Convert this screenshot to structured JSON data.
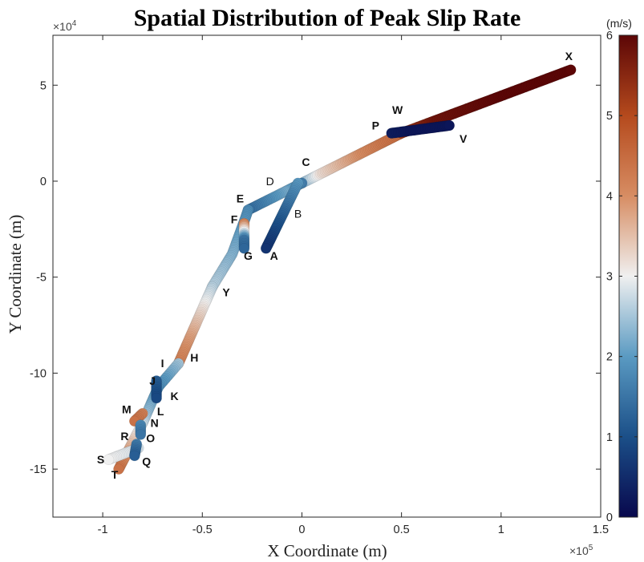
{
  "chart_data": {
    "type": "scatter",
    "title": "Spatial Distribution of Peak Slip Rate",
    "xlabel": "X Coordinate (m)",
    "ylabel": "Y Coordinate (m)",
    "x_exponent_base": "×10",
    "x_exponent_power": "5",
    "y_exponent_base": "×10",
    "y_exponent_power": "4",
    "xlim": [
      -125000,
      150000
    ],
    "ylim": [
      -175000,
      76000
    ],
    "x_ticks": [
      -100000,
      -50000,
      0,
      50000,
      100000,
      150000
    ],
    "x_tick_labels": [
      "-1",
      "-0.5",
      "0",
      "0.5",
      "1",
      "1.5"
    ],
    "y_ticks": [
      -150000,
      -100000,
      -50000,
      0,
      50000
    ],
    "y_tick_labels": [
      "-15",
      "-10",
      "-5",
      "0",
      "5"
    ],
    "grid": false,
    "colorbar": {
      "label": "(m/s)",
      "min": 0,
      "max": 6,
      "ticks": [
        0,
        1,
        2,
        3,
        4,
        5,
        6
      ],
      "tick_labels": [
        "0",
        "1",
        "2",
        "3",
        "4",
        "5",
        "6"
      ],
      "colormap": [
        "#08084d",
        "#1b4f88",
        "#5a9ac2",
        "#f0f0f0",
        "#d78d63",
        "#b54a1d",
        "#5c0606"
      ]
    },
    "segments": [
      {
        "points": [
          [
            0,
            -1000
          ],
          [
            50000,
            25000
          ]
        ],
        "values": [
          2.2,
          3.2,
          3.6,
          4.0,
          4.3,
          4.5
        ]
      },
      {
        "points": [
          [
            50000,
            25000
          ],
          [
            135000,
            58000
          ]
        ],
        "values": [
          5.2,
          5.8,
          5.9,
          6.0,
          6.0,
          6.0
        ]
      },
      {
        "points": [
          [
            45000,
            25000
          ],
          [
            74000,
            29000
          ]
        ],
        "values": [
          0.3,
          0.2,
          0.2,
          0.2
        ]
      },
      {
        "points": [
          [
            0,
            -1000
          ],
          [
            -27000,
            -15000
          ]
        ],
        "values": [
          1.6,
          2.2,
          1.8,
          1.4
        ]
      },
      {
        "points": [
          [
            -2000,
            -1000
          ],
          [
            -18000,
            -35000
          ]
        ],
        "values": [
          2.0,
          1.5,
          1.0,
          0.6
        ]
      },
      {
        "points": [
          [
            -27000,
            -15000
          ],
          [
            -29000,
            -21000
          ],
          [
            -35000,
            -38000
          ],
          [
            -45000,
            -55000
          ]
        ],
        "values": [
          1.8,
          2.0,
          2.2,
          2.4,
          2.6
        ]
      },
      {
        "points": [
          [
            -29000,
            -22000
          ],
          [
            -29000,
            -35000
          ]
        ],
        "values": [
          4.2,
          3.0,
          1.5,
          1.3
        ]
      },
      {
        "points": [
          [
            -45000,
            -55000
          ],
          [
            -62000,
            -95000
          ]
        ],
        "values": [
          2.6,
          3.2,
          3.8,
          4.2
        ]
      },
      {
        "points": [
          [
            -62000,
            -95000
          ],
          [
            -72000,
            -107000
          ],
          [
            -80000,
            -126000
          ],
          [
            -92000,
            -150000
          ]
        ],
        "values": [
          2.5,
          1.8,
          2.4,
          3.4,
          4.4
        ]
      },
      {
        "points": [
          [
            -73000,
            -104000
          ],
          [
            -73000,
            -113000
          ]
        ],
        "values": [
          1.2,
          0.9
        ]
      },
      {
        "points": [
          [
            -80000,
            -121000
          ],
          [
            -84000,
            -125000
          ]
        ],
        "values": [
          4.2,
          4.4
        ]
      },
      {
        "points": [
          [
            -81000,
            -127000
          ],
          [
            -81000,
            -132000
          ]
        ],
        "values": [
          1.8,
          1.5
        ]
      },
      {
        "points": [
          [
            -82000,
            -139000
          ],
          [
            -97000,
            -145000
          ]
        ],
        "values": [
          2.8,
          3.0
        ]
      },
      {
        "points": [
          [
            -83000,
            -137000
          ],
          [
            -84000,
            -143000
          ]
        ],
        "values": [
          1.6,
          1.2
        ]
      }
    ],
    "annotations": [
      {
        "text": "X",
        "x": 134000,
        "y": 63000,
        "bold": true
      },
      {
        "text": "W",
        "x": 48000,
        "y": 35000,
        "bold": true
      },
      {
        "text": "P",
        "x": 37000,
        "y": 27000,
        "bold": true
      },
      {
        "text": "V",
        "x": 81000,
        "y": 20000,
        "bold": true
      },
      {
        "text": "C",
        "x": 2000,
        "y": 8000,
        "bold": true
      },
      {
        "text": "D",
        "x": -16000,
        "y": -2000,
        "bold": false
      },
      {
        "text": "E",
        "x": -31000,
        "y": -11000,
        "bold": true
      },
      {
        "text": "B",
        "x": -2000,
        "y": -19000,
        "bold": false
      },
      {
        "text": "F",
        "x": -34000,
        "y": -22000,
        "bold": true
      },
      {
        "text": "G",
        "x": -27000,
        "y": -41000,
        "bold": true
      },
      {
        "text": "A",
        "x": -14000,
        "y": -41000,
        "bold": true
      },
      {
        "text": "Y",
        "x": -38000,
        "y": -60000,
        "bold": true
      },
      {
        "text": "H",
        "x": -54000,
        "y": -94000,
        "bold": true
      },
      {
        "text": "I",
        "x": -70000,
        "y": -97000,
        "bold": true
      },
      {
        "text": "J",
        "x": -75000,
        "y": -106000,
        "bold": true
      },
      {
        "text": "K",
        "x": -64000,
        "y": -114000,
        "bold": true
      },
      {
        "text": "M",
        "x": -88000,
        "y": -121000,
        "bold": true
      },
      {
        "text": "L",
        "x": -71000,
        "y": -122000,
        "bold": true
      },
      {
        "text": "N",
        "x": -74000,
        "y": -128000,
        "bold": true
      },
      {
        "text": "R",
        "x": -89000,
        "y": -135000,
        "bold": true
      },
      {
        "text": "O",
        "x": -76000,
        "y": -136000,
        "bold": true
      },
      {
        "text": "S",
        "x": -101000,
        "y": -147000,
        "bold": true
      },
      {
        "text": "Q",
        "x": -78000,
        "y": -148000,
        "bold": true
      },
      {
        "text": "T",
        "x": -94000,
        "y": -155000,
        "bold": true
      }
    ]
  }
}
